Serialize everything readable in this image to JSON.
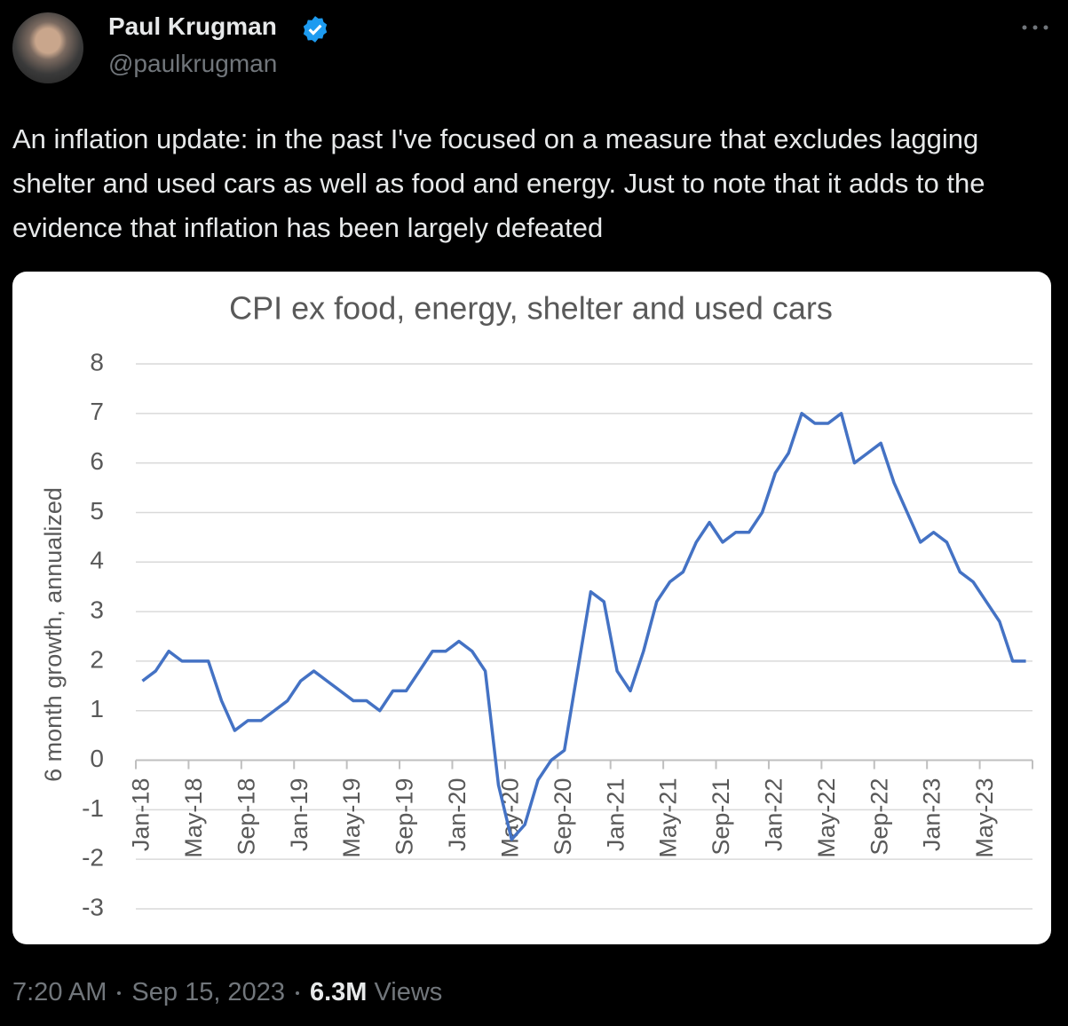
{
  "tweet": {
    "name": "Paul Krugman",
    "handle": "@paulkrugman",
    "text": "An inflation update: in the past I've focused on a measure that excludes lagging shelter and used cars as well as food and energy. Just to note that it adds to the evidence that inflation has been largely defeated",
    "time": "7:20 AM",
    "date": "Sep 15, 2023",
    "views_count": "6.3M",
    "views_label": "Views"
  },
  "chart_data": {
    "type": "line",
    "title": "CPI ex food, energy, shelter and used cars",
    "y_label": "6 month growth, annualized",
    "categories": [
      "Jan-18",
      null,
      null,
      null,
      "May-18",
      null,
      null,
      null,
      "Sep-18",
      null,
      null,
      null,
      "Jan-19",
      null,
      null,
      null,
      "May-19",
      null,
      null,
      null,
      "Sep-19",
      null,
      null,
      null,
      "Jan-20",
      null,
      null,
      null,
      "May-20",
      null,
      null,
      null,
      "Sep-20",
      null,
      null,
      null,
      "Jan-21",
      null,
      null,
      null,
      "May-21",
      null,
      null,
      null,
      "Sep-21",
      null,
      null,
      null,
      "Jan-22",
      null,
      null,
      null,
      "May-22",
      null,
      null,
      null,
      "Sep-22",
      null,
      null,
      null,
      "Jan-23",
      null,
      null,
      null,
      "May-23",
      null,
      null,
      null
    ],
    "values": [
      1.6,
      1.8,
      2.2,
      2.0,
      2.0,
      2.0,
      1.2,
      0.6,
      0.8,
      0.8,
      1.0,
      1.2,
      1.6,
      1.8,
      1.6,
      1.4,
      1.2,
      1.2,
      1.0,
      1.4,
      1.4,
      1.8,
      2.2,
      2.2,
      2.4,
      2.2,
      1.8,
      -0.5,
      -1.6,
      -1.3,
      -0.4,
      0.0,
      0.2,
      1.8,
      3.4,
      3.2,
      1.8,
      1.4,
      2.2,
      3.2,
      3.6,
      3.8,
      4.4,
      4.8,
      4.4,
      4.6,
      4.6,
      5.0,
      5.8,
      6.2,
      7.0,
      6.8,
      6.8,
      7.0,
      6.0,
      6.2,
      6.4,
      5.6,
      5.0,
      4.4,
      4.6,
      4.4,
      3.8,
      3.6,
      3.2,
      2.8,
      2.0,
      2.0
    ],
    "color": "#4472c4",
    "ylim": [
      -3,
      8
    ],
    "yticks": [
      -3,
      -2,
      -1,
      0,
      1,
      2,
      3,
      4,
      5,
      6,
      7,
      8
    ],
    "grid": true
  }
}
